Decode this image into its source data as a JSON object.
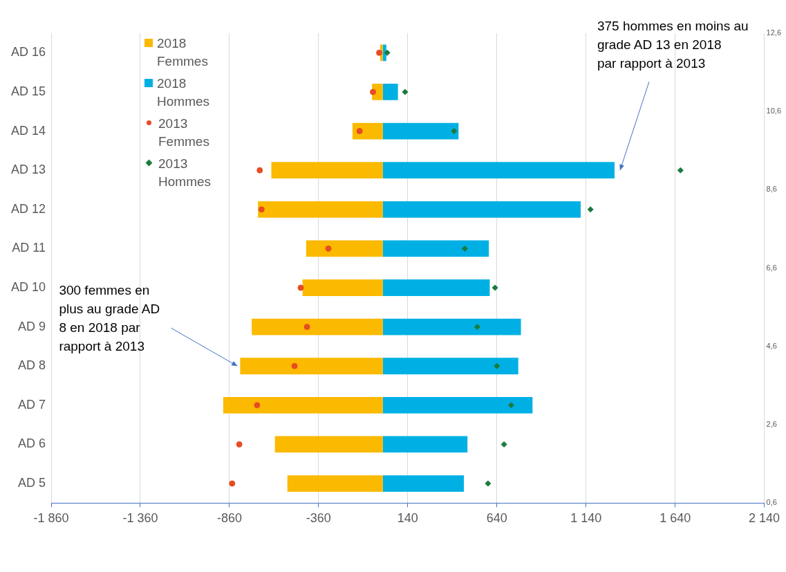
{
  "chart_data": {
    "type": "bar",
    "orientation": "horizontal",
    "stacked": true,
    "grid": "x",
    "legend": "top left",
    "categories": [
      "AD 16",
      "AD 15",
      "AD 14",
      "AD 13",
      "AD 12",
      "AD 11",
      "AD 10",
      "AD 9",
      "AD 8",
      "AD 7",
      "AD 6",
      "AD 5"
    ],
    "xlim": [
      -1860,
      2140
    ],
    "xticks": [
      {
        "value": -1860,
        "label": "-1 860"
      },
      {
        "value": -1360,
        "label": "-1 360"
      },
      -860,
      -360,
      140,
      640,
      {
        "value": 1140,
        "label": "1 140"
      },
      {
        "value": 1640,
        "label": "1 640"
      },
      {
        "value": 2140,
        "label": "2 140"
      }
    ],
    "y2lim": [
      0.6,
      12.6
    ],
    "y2ticks": [
      {
        "value": 0.6,
        "label": "0,6"
      },
      {
        "value": 2.6,
        "label": "2,6"
      },
      {
        "value": 4.6,
        "label": "4,6"
      },
      {
        "value": 6.6,
        "label": "6,6"
      },
      {
        "value": 8.6,
        "label": "8,6"
      },
      {
        "value": 10.6,
        "label": "10,6"
      },
      {
        "value": 12.6,
        "label": "12,6"
      }
    ],
    "series": [
      {
        "name": "2018 Femmes",
        "color": "#fbb900",
        "values": [
          -15,
          -60,
          -170,
          -625,
          -700,
          -430,
          -450,
          -735,
          -800,
          -895,
          -605,
          -535
        ]
      },
      {
        "name": "2018 Hommes",
        "color": "#00b0e4",
        "values": [
          20,
          85,
          425,
          1300,
          1110,
          595,
          600,
          775,
          760,
          840,
          475,
          455
        ]
      },
      {
        "name": "2013 Femmes",
        "type": "scatter",
        "marker": "circle",
        "color": "#e84c22",
        "values": [
          -20,
          -55,
          -130,
          -690,
          -680,
          -305,
          -460,
          -425,
          -495,
          -705,
          -805,
          -845
        ]
      },
      {
        "name": "2013 Hommes",
        "type": "scatter",
        "marker": "diamond",
        "color": "#1b7a3e",
        "values": [
          25,
          125,
          400,
          1670,
          1165,
          460,
          630,
          530,
          640,
          720,
          680,
          590
        ]
      }
    ],
    "annotations": [
      {
        "text": "300 femmes en plus au grade AD 8 en 2018 par rapport à 2013",
        "x": -800,
        "y": "AD 8"
      },
      {
        "text": "375 hommes en moins au grade AD 13 en 2018 par rapport à 2013",
        "x": 1300,
        "y": "AD 13"
      }
    ]
  }
}
